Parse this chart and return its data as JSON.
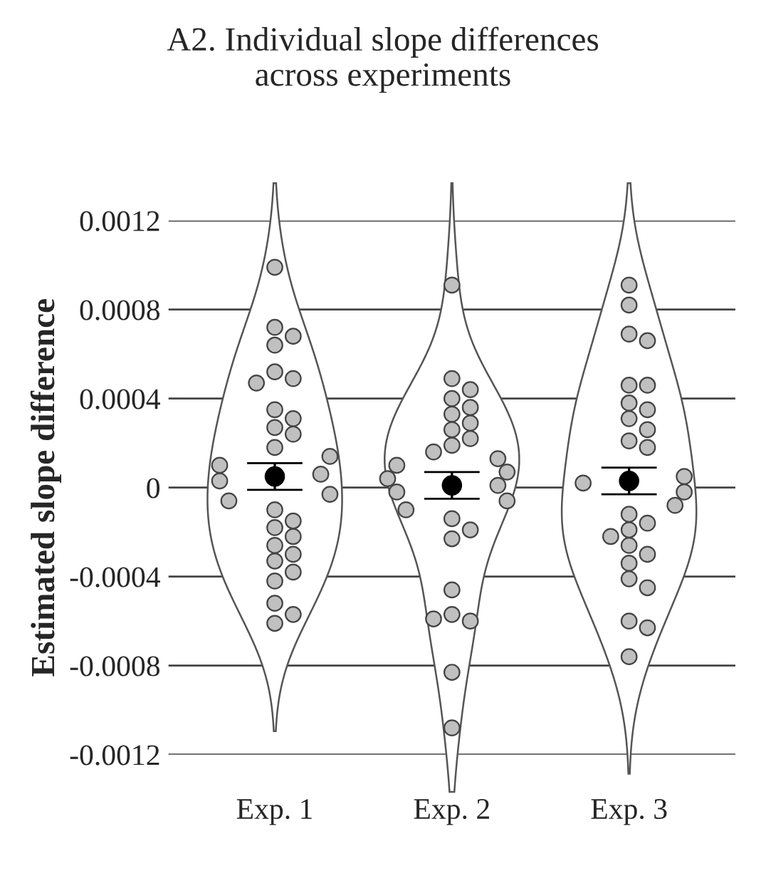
{
  "chart_data": {
    "type": "scatter",
    "title": "A2. Individual slope differences\nacross experiments",
    "ylabel": "Estimated slope difference",
    "categories": [
      "Exp. 1",
      "Exp. 2",
      "Exp. 3"
    ],
    "ylim": [
      -0.0012,
      0.0012
    ],
    "yticks": [
      {
        "value": -0.0012,
        "label": "-0.0012"
      },
      {
        "value": -0.0008,
        "label": "-0.0008"
      },
      {
        "value": -0.0004,
        "label": "-0.0004"
      },
      0,
      {
        "value": 0.0004,
        "label": "0.0004"
      },
      {
        "value": 0.0008,
        "label": "0.0008"
      },
      {
        "value": 0.0012,
        "label": "0.0012"
      }
    ],
    "grid": "y",
    "legend": false,
    "marker": "circle",
    "series": [
      {
        "color": "#c0c0c0",
        "x": [
          "Exp. 1",
          "Exp. 1",
          "Exp. 1",
          "Exp. 1",
          "Exp. 1",
          "Exp. 1",
          "Exp. 1",
          "Exp. 1",
          "Exp. 1",
          "Exp. 1",
          "Exp. 1",
          "Exp. 1",
          "Exp. 1",
          "Exp. 1",
          "Exp. 1",
          "Exp. 1",
          "Exp. 1",
          "Exp. 1",
          "Exp. 1",
          "Exp. 1",
          "Exp. 1",
          "Exp. 1",
          "Exp. 1",
          "Exp. 1",
          "Exp. 1",
          "Exp. 1",
          "Exp. 1",
          "Exp. 1",
          "Exp. 1",
          "Exp. 1"
        ],
        "values": [
          0.00099,
          0.00072,
          0.00068,
          0.00064,
          0.00052,
          0.00049,
          0.00047,
          0.00035,
          0.00031,
          0.00027,
          0.00024,
          0.00018,
          0.00014,
          0.0001,
          6e-05,
          3e-05,
          -3e-05,
          -6e-05,
          -0.0001,
          -0.00015,
          -0.00018,
          -0.00022,
          -0.00026,
          -0.0003,
          -0.00033,
          -0.00038,
          -0.00042,
          -0.00052,
          -0.00057,
          -0.00061
        ]
      },
      {
        "color": "#c0c0c0",
        "x": [
          "Exp. 2",
          "Exp. 2",
          "Exp. 2",
          "Exp. 2",
          "Exp. 2",
          "Exp. 2",
          "Exp. 2",
          "Exp. 2",
          "Exp. 2",
          "Exp. 2",
          "Exp. 2",
          "Exp. 2",
          "Exp. 2",
          "Exp. 2",
          "Exp. 2",
          "Exp. 2",
          "Exp. 2",
          "Exp. 2",
          "Exp. 2",
          "Exp. 2",
          "Exp. 2",
          "Exp. 2",
          "Exp. 2",
          "Exp. 2",
          "Exp. 2",
          "Exp. 2",
          "Exp. 2",
          "Exp. 2"
        ],
        "values": [
          0.00091,
          0.00049,
          0.00044,
          0.0004,
          0.00036,
          0.00033,
          0.00029,
          0.00026,
          0.00022,
          0.00019,
          0.00016,
          0.00013,
          0.0001,
          7e-05,
          4e-05,
          1e-05,
          -2e-05,
          -6e-05,
          -0.0001,
          -0.00014,
          -0.00019,
          -0.00023,
          -0.00046,
          -0.00057,
          -0.0006,
          -0.00059,
          -0.00083,
          -0.00108
        ]
      },
      {
        "color": "#c0c0c0",
        "x": [
          "Exp. 3",
          "Exp. 3",
          "Exp. 3",
          "Exp. 3",
          "Exp. 3",
          "Exp. 3",
          "Exp. 3",
          "Exp. 3",
          "Exp. 3",
          "Exp. 3",
          "Exp. 3",
          "Exp. 3",
          "Exp. 3",
          "Exp. 3",
          "Exp. 3",
          "Exp. 3",
          "Exp. 3",
          "Exp. 3",
          "Exp. 3",
          "Exp. 3",
          "Exp. 3",
          "Exp. 3",
          "Exp. 3",
          "Exp. 3",
          "Exp. 3",
          "Exp. 3",
          "Exp. 3",
          "Exp. 3"
        ],
        "values": [
          0.00091,
          0.00082,
          0.00069,
          0.00066,
          0.00046,
          0.00046,
          0.00038,
          0.00035,
          0.00031,
          0.00026,
          0.00021,
          0.00018,
          5e-05,
          2e-05,
          -2e-05,
          -8e-05,
          -0.00012,
          -0.00016,
          -0.00019,
          -0.00022,
          -0.00026,
          -0.0003,
          -0.00034,
          -0.00041,
          -0.00045,
          -0.0006,
          -0.00063,
          -0.00076
        ]
      },
      {
        "color": "#000000",
        "x": [
          "Exp. 1",
          "Exp. 2",
          "Exp. 3"
        ],
        "values": [
          5e-05,
          1e-05,
          3e-05
        ],
        "errors": [
          6e-05,
          6e-05,
          6e-05
        ]
      }
    ]
  }
}
